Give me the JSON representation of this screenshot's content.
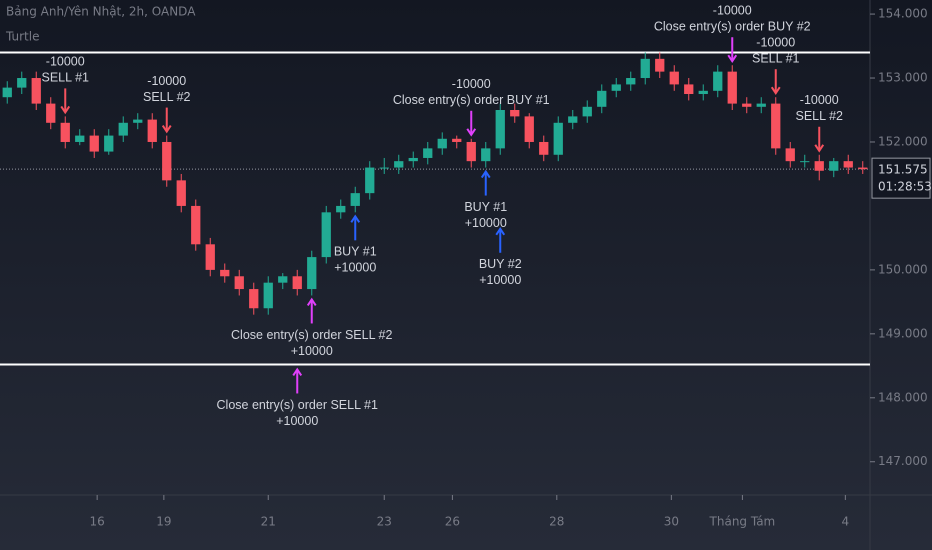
{
  "chart_data": {
    "type": "candlestick",
    "legend_title": "Bảng Anh/Yên Nhật, 2h, OANDA",
    "strategy": "Turtle",
    "up_color": "#22ab94",
    "down_color": "#f7525f",
    "xlim": [
      0,
      60
    ],
    "ylim": [
      146.48,
      154.22
    ],
    "xticks": [
      {
        "value": 6.7,
        "label": "16"
      },
      {
        "value": 11.3,
        "label": "19"
      },
      {
        "value": 18.5,
        "label": "21"
      },
      {
        "value": 26.5,
        "label": "23"
      },
      {
        "value": 31.2,
        "label": "26"
      },
      {
        "value": 38.4,
        "label": "28"
      },
      {
        "value": 46.3,
        "label": "30"
      },
      {
        "value": 51.2,
        "label": "Tháng Tám"
      },
      {
        "value": 58.3,
        "label": "4"
      }
    ],
    "yticks": [
      {
        "value": 154,
        "label": "154.000"
      },
      {
        "value": 153,
        "label": "153.000"
      },
      {
        "value": 152,
        "label": "152.000"
      },
      {
        "value": 150,
        "label": "150.000"
      },
      {
        "value": 149,
        "label": "149.000"
      },
      {
        "value": 148,
        "label": "148.000"
      },
      {
        "value": 147,
        "label": "147.000"
      }
    ],
    "open": [
      152.7,
      152.85,
      153.0,
      152.6,
      152.3,
      152.0,
      152.1,
      151.85,
      152.1,
      152.3,
      152.35,
      152.0,
      151.4,
      151.0,
      150.4,
      150.0,
      149.9,
      149.7,
      149.4,
      149.8,
      149.9,
      149.7,
      150.2,
      150.9,
      151.0,
      151.2,
      151.6,
      151.6,
      151.7,
      151.75,
      151.9,
      152.05,
      152.0,
      151.7,
      151.9,
      152.5,
      152.4,
      152.0,
      151.8,
      152.3,
      152.4,
      152.55,
      152.8,
      152.9,
      153.0,
      153.3,
      153.1,
      152.9,
      152.75,
      152.8,
      153.1,
      152.6,
      152.55,
      152.6,
      151.9,
      151.7,
      151.7,
      151.55,
      151.7,
      151.6
    ],
    "high": [
      152.95,
      153.1,
      153.1,
      152.7,
      152.4,
      152.2,
      152.2,
      152.2,
      152.4,
      152.45,
      152.45,
      152.1,
      151.5,
      151.1,
      150.5,
      150.1,
      150.0,
      149.8,
      149.9,
      149.95,
      150.0,
      150.3,
      151.0,
      151.1,
      151.3,
      151.7,
      151.75,
      151.8,
      151.85,
      152.0,
      152.15,
      152.1,
      152.05,
      152.0,
      152.6,
      152.6,
      152.45,
      152.1,
      152.4,
      152.5,
      152.65,
      152.9,
      153.0,
      153.1,
      153.4,
      153.4,
      153.2,
      153.0,
      152.9,
      153.2,
      153.2,
      152.7,
      152.7,
      152.7,
      152.0,
      151.8,
      151.8,
      151.75,
      151.8,
      151.7
    ],
    "low": [
      152.6,
      152.75,
      152.5,
      152.2,
      151.9,
      151.95,
      151.75,
      151.8,
      152.0,
      152.2,
      151.9,
      151.3,
      150.9,
      150.3,
      149.9,
      149.8,
      149.6,
      149.3,
      149.3,
      149.7,
      149.6,
      149.6,
      150.1,
      150.8,
      150.9,
      151.1,
      151.5,
      151.5,
      151.6,
      151.65,
      151.8,
      151.9,
      151.6,
      151.6,
      151.8,
      152.3,
      151.9,
      151.7,
      151.7,
      152.2,
      152.3,
      152.45,
      152.7,
      152.8,
      152.9,
      153.0,
      152.8,
      152.65,
      152.65,
      152.7,
      152.5,
      152.45,
      152.45,
      151.8,
      151.6,
      151.6,
      151.4,
      151.45,
      151.5,
      151.5
    ],
    "close": [
      152.85,
      153.0,
      152.6,
      152.3,
      152.0,
      152.1,
      151.85,
      152.1,
      152.3,
      152.35,
      152.0,
      151.4,
      151.0,
      150.4,
      150.0,
      149.9,
      149.7,
      149.4,
      149.8,
      149.9,
      149.7,
      150.2,
      150.9,
      151.0,
      151.2,
      151.6,
      151.6,
      151.7,
      151.75,
      151.9,
      152.05,
      152.0,
      151.7,
      151.9,
      152.5,
      152.4,
      152.0,
      151.8,
      152.3,
      152.4,
      152.55,
      152.8,
      152.9,
      153.0,
      153.3,
      153.1,
      152.9,
      152.75,
      152.8,
      153.1,
      152.6,
      152.55,
      152.6,
      151.9,
      151.7,
      151.7,
      151.55,
      151.7,
      151.6,
      151.575
    ],
    "levels": [
      153.4,
      148.52
    ],
    "last_price": 151.575,
    "countdown": "01:28:53",
    "signals": [
      {
        "x": 4,
        "side": "sell",
        "color": "#f7525f",
        "qty": "-10000",
        "text": "SELL #1"
      },
      {
        "x": 11,
        "side": "sell",
        "color": "#f7525f",
        "qty": "-10000",
        "text": "SELL #2"
      },
      {
        "x": 32,
        "side": "sell",
        "color": "#e040fb",
        "qty": "-10000",
        "text": "Close entry(s) order BUY #1"
      },
      {
        "x": 24,
        "side": "buy",
        "color": "#2962ff",
        "qty": "+10000",
        "text": "BUY #1"
      },
      {
        "x": 33,
        "side": "buy",
        "color": "#2962ff",
        "qty": "+10000",
        "text": "BUY #1"
      },
      {
        "x": 34,
        "side": "buy",
        "color": "#2962ff",
        "qty": "+10000",
        "text": "BUY #2"
      },
      {
        "x": 21,
        "side": "buy",
        "color": "#e040fb",
        "qty": "+10000",
        "text": "Close entry(s) order SELL #2"
      },
      {
        "x": 20,
        "side": "buy",
        "color": "#e040fb",
        "qty": "+10000",
        "text": "Close entry(s) order SELL #1"
      },
      {
        "x": 50,
        "side": "sell",
        "color": "#e040fb",
        "qty": "-10000",
        "text": "Close entry(s) order BUY #2"
      },
      {
        "x": 53,
        "side": "sell",
        "color": "#f7525f",
        "qty": "-10000",
        "text": "SELL #1"
      },
      {
        "x": 56,
        "side": "sell",
        "color": "#f7525f",
        "qty": "-10000",
        "text": "SELL #2"
      }
    ]
  }
}
